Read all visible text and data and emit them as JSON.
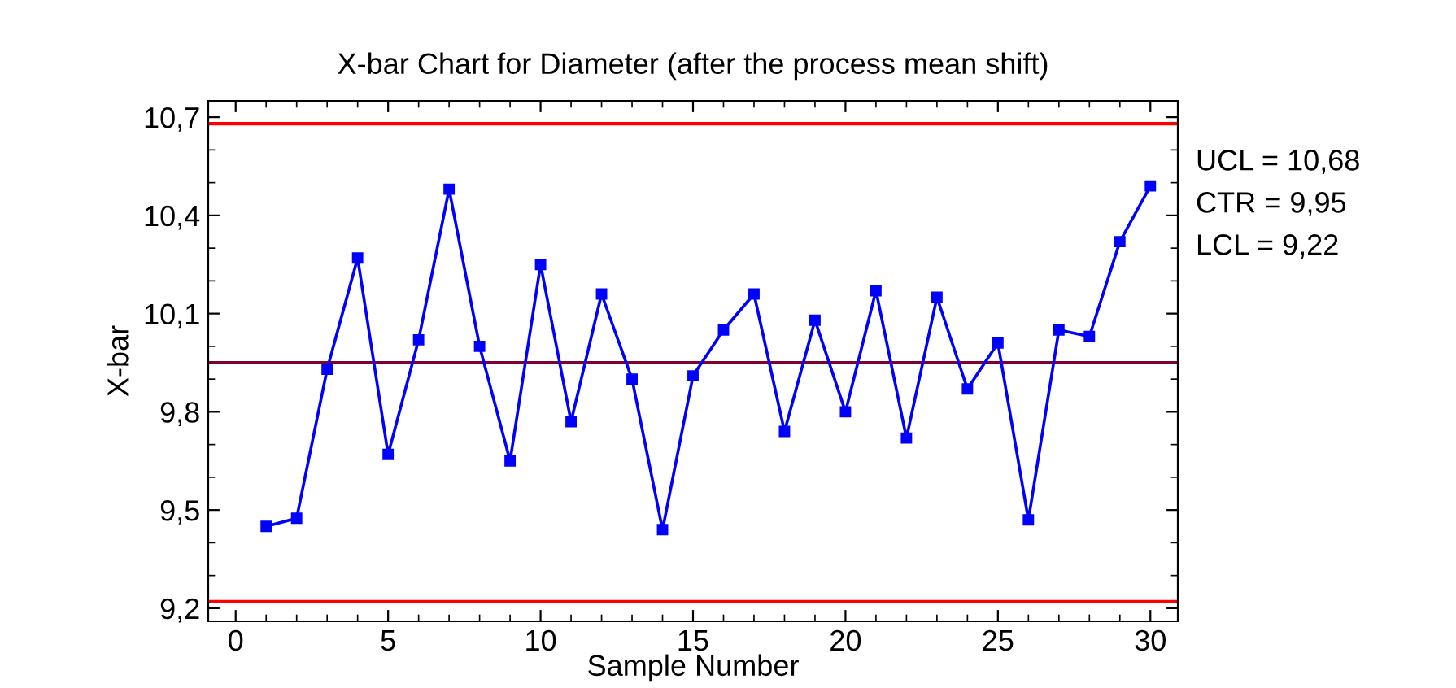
{
  "chart_data": {
    "type": "line",
    "title": "X-bar Chart for Diameter (after the process mean shift)",
    "xlabel": "Sample Number",
    "ylabel": "X-bar",
    "x": [
      1,
      2,
      3,
      4,
      5,
      6,
      7,
      8,
      9,
      10,
      11,
      12,
      13,
      14,
      15,
      16,
      17,
      18,
      19,
      20,
      21,
      22,
      23,
      24,
      25,
      26,
      27,
      28,
      29,
      30
    ],
    "series": [
      {
        "color": "#0000ff",
        "values": [
          9.45,
          9.475,
          9.93,
          10.27,
          9.67,
          10.02,
          10.48,
          10.0,
          9.65,
          10.25,
          9.77,
          10.16,
          9.9,
          9.44,
          9.91,
          10.05,
          10.16,
          9.74,
          10.08,
          9.8,
          10.17,
          9.72,
          10.15,
          9.87,
          10.01,
          9.47,
          10.05,
          10.03,
          10.32,
          10.49
        ]
      }
    ],
    "marker": "square",
    "line_style": "solid",
    "xlim": [
      -0.9,
      30.9
    ],
    "xticks": [
      0,
      5,
      10,
      15,
      20,
      25,
      30
    ],
    "ylim": [
      9.16,
      10.75
    ],
    "yticks": [
      {
        "value": 9.2,
        "label": "9,2"
      },
      {
        "value": 9.5,
        "label": "9,5"
      },
      {
        "value": 9.8,
        "label": "9,8"
      },
      {
        "value": 10.1,
        "label": "10,1"
      },
      {
        "value": 10.4,
        "label": "10,4"
      },
      {
        "value": 10.7,
        "label": "10,7"
      }
    ],
    "ref_lines": [
      {
        "axis": "y",
        "value": 10.68,
        "color": "#ff0000"
      },
      {
        "axis": "y",
        "value": 9.95,
        "color": "#800033"
      },
      {
        "axis": "y",
        "value": 9.22,
        "color": "#ff0000"
      }
    ],
    "annotations": [
      "UCL = 10,68",
      "CTR = 9,95",
      "LCL = 9,22"
    ],
    "grid": false,
    "legend": false
  }
}
